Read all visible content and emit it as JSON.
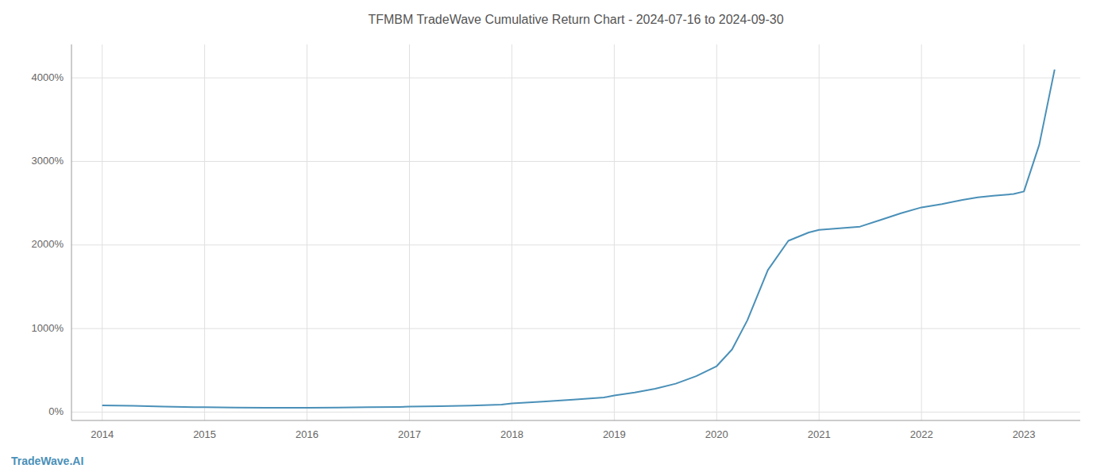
{
  "chart_data": {
    "type": "line",
    "title": "TFMBM TradeWave Cumulative Return Chart - 2024-07-16 to 2024-09-30",
    "annotations": [
      "TradeWave.AI"
    ],
    "color": "#4a90b8",
    "x": [
      2014.0,
      2014.3,
      2014.6,
      2014.9,
      2015.0,
      2015.3,
      2015.6,
      2015.9,
      2016.0,
      2016.3,
      2016.6,
      2016.9,
      2017.0,
      2017.3,
      2017.6,
      2017.9,
      2018.0,
      2018.3,
      2018.6,
      2018.9,
      2019.0,
      2019.2,
      2019.4,
      2019.6,
      2019.8,
      2020.0,
      2020.15,
      2020.3,
      2020.5,
      2020.7,
      2020.9,
      2021.0,
      2021.2,
      2021.4,
      2021.6,
      2021.8,
      2022.0,
      2022.2,
      2022.4,
      2022.55,
      2022.7,
      2022.9,
      2023.0,
      2023.15,
      2023.3
    ],
    "values": [
      80,
      75,
      65,
      60,
      58,
      55,
      53,
      52,
      52,
      55,
      58,
      62,
      65,
      70,
      78,
      90,
      105,
      125,
      150,
      175,
      200,
      235,
      280,
      340,
      430,
      550,
      750,
      1100,
      1700,
      2050,
      2150,
      2180,
      2200,
      2220,
      2300,
      2380,
      2450,
      2490,
      2540,
      2570,
      2590,
      2610,
      2640,
      3200,
      4100
    ],
    "xlim": [
      2013.7,
      2023.55
    ],
    "xticks": [
      2014,
      2015,
      2016,
      2017,
      2018,
      2019,
      2020,
      2021,
      2022,
      2023
    ],
    "ylim": [
      -100,
      4400
    ],
    "yticks": [
      {
        "value": 0,
        "label": "0%"
      },
      {
        "value": 1000,
        "label": "1000%"
      },
      {
        "value": 2000,
        "label": "2000%"
      },
      {
        "value": 3000,
        "label": "3000%"
      },
      {
        "value": 4000,
        "label": "4000%"
      }
    ],
    "grid": true
  }
}
